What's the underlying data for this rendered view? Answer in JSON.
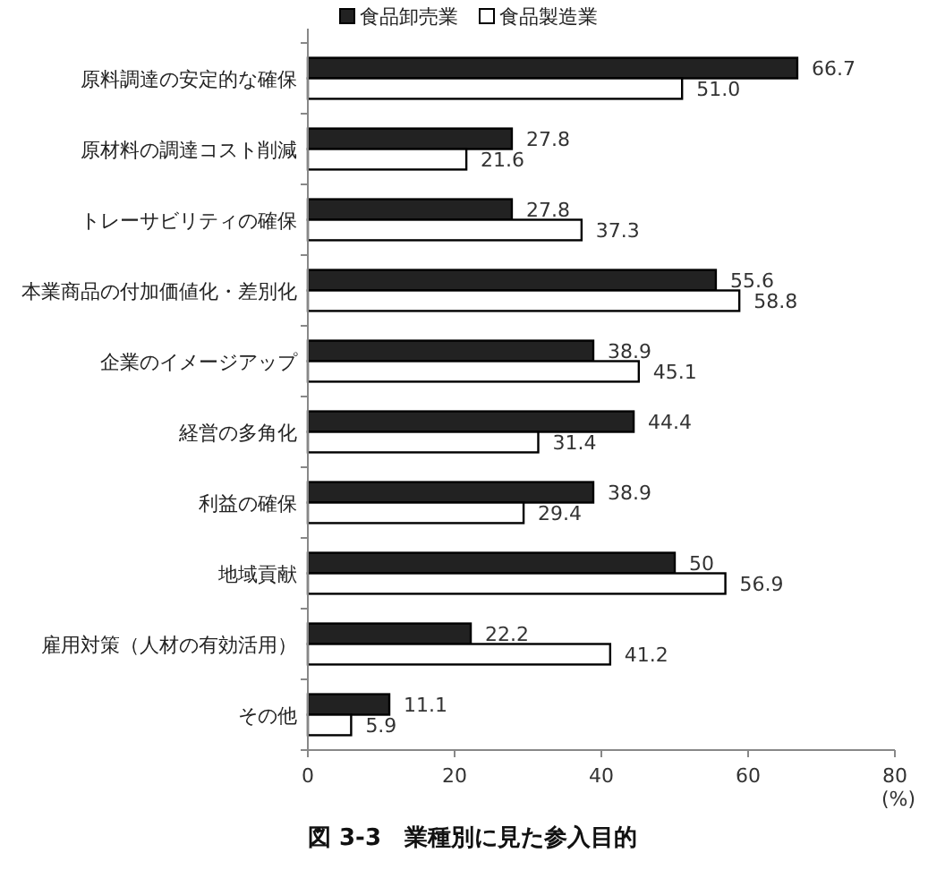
{
  "chart_data": {
    "type": "bar",
    "orientation": "horizontal",
    "title": "図 3-3　業種別に見た参入目的",
    "xlabel": "(%)",
    "categories": [
      "原料調達の安定的な確保",
      "原材料の調達コスト削減",
      "トレーサビリティの確保",
      "本業商品の付加価値化・差別化",
      "企業のイメージアップ",
      "経営の多角化",
      "利益の確保",
      "地域貢献",
      "雇用対策（人材の有効活用）",
      "その他"
    ],
    "series": [
      {
        "name": "食品卸売業",
        "color": "#222222",
        "values": [
          66.7,
          27.8,
          27.8,
          55.6,
          38.9,
          44.4,
          38.9,
          50,
          22.2,
          11.1
        ],
        "value_labels": [
          "66.7",
          "27.8",
          "27.8",
          "55.6",
          "38.9",
          "44.4",
          "38.9",
          "50",
          "22.2",
          "11.1"
        ]
      },
      {
        "name": "食品製造業",
        "color": "#ffffff",
        "values": [
          51.0,
          21.6,
          37.3,
          58.8,
          45.1,
          31.4,
          29.4,
          56.9,
          41.2,
          5.9
        ],
        "value_labels": [
          "51.0",
          "21.6",
          "37.3",
          "58.8",
          "45.1",
          "31.4",
          "29.4",
          "56.9",
          "41.2",
          "5.9"
        ]
      }
    ],
    "xlim": [
      0,
      80
    ],
    "xticks": [
      0,
      20,
      40,
      60,
      80
    ],
    "legend": "top",
    "grid": false
  }
}
